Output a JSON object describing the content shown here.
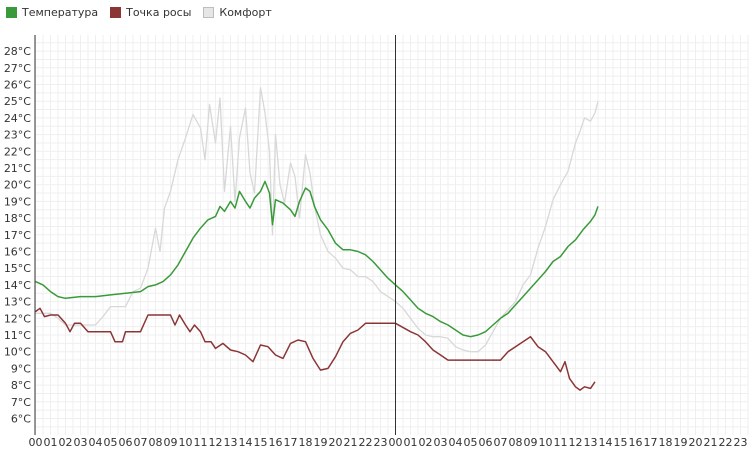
{
  "chart_data": {
    "type": "line",
    "title": "",
    "xlabel": "",
    "ylabel": "",
    "y_unit": "°C",
    "ylim": [
      5.5,
      29
    ],
    "y_ticks": [
      6,
      7,
      8,
      9,
      10,
      11,
      12,
      13,
      14,
      15,
      16,
      17,
      18,
      19,
      20,
      21,
      22,
      23,
      24,
      25,
      26,
      27,
      28
    ],
    "y_tick_labels": [
      "6°C",
      "7°C",
      "8°C",
      "9°C",
      "10°C",
      "11°C",
      "12°C",
      "13°C",
      "14°C",
      "15°C",
      "16°C",
      "17°C",
      "18°C",
      "19°C",
      "20°C",
      "21°C",
      "22°C",
      "23°C",
      "24°C",
      "25°C",
      "26°C",
      "27°C",
      "28°C"
    ],
    "x_unit": "hours",
    "xlim": [
      0,
      48
    ],
    "x_tick_labels": [
      "00",
      "01",
      "02",
      "03",
      "04",
      "05",
      "06",
      "07",
      "08",
      "09",
      "10",
      "11",
      "12",
      "13",
      "14",
      "15",
      "16",
      "17",
      "18",
      "19",
      "20",
      "21",
      "22",
      "23",
      "00",
      "01",
      "02",
      "03",
      "04",
      "05",
      "06",
      "07",
      "08",
      "09",
      "10",
      "11",
      "12",
      "13",
      "14",
      "15",
      "16",
      "17",
      "18",
      "19",
      "20",
      "21",
      "22",
      "23"
    ],
    "day_divider_x": 24,
    "grid": true,
    "legend_position": "top-left",
    "series": [
      {
        "name": "Температура",
        "color": "#3a9a3a",
        "points": [
          [
            0,
            14.2
          ],
          [
            0.5,
            14.0
          ],
          [
            1,
            13.6
          ],
          [
            1.5,
            13.3
          ],
          [
            2,
            13.2
          ],
          [
            3,
            13.3
          ],
          [
            4,
            13.3
          ],
          [
            5,
            13.4
          ],
          [
            6,
            13.5
          ],
          [
            7,
            13.6
          ],
          [
            7.5,
            13.9
          ],
          [
            8,
            14.0
          ],
          [
            8.5,
            14.2
          ],
          [
            9,
            14.6
          ],
          [
            9.5,
            15.2
          ],
          [
            10,
            16.0
          ],
          [
            10.5,
            16.8
          ],
          [
            11,
            17.4
          ],
          [
            11.5,
            17.9
          ],
          [
            12,
            18.1
          ],
          [
            12.3,
            18.7
          ],
          [
            12.6,
            18.4
          ],
          [
            13,
            19.0
          ],
          [
            13.3,
            18.6
          ],
          [
            13.6,
            19.6
          ],
          [
            14,
            19.0
          ],
          [
            14.3,
            18.6
          ],
          [
            14.6,
            19.2
          ],
          [
            15,
            19.6
          ],
          [
            15.3,
            20.2
          ],
          [
            15.6,
            19.5
          ],
          [
            15.8,
            17.6
          ],
          [
            16,
            19.1
          ],
          [
            16.5,
            18.9
          ],
          [
            17,
            18.5
          ],
          [
            17.3,
            18.1
          ],
          [
            17.6,
            19.0
          ],
          [
            18,
            19.8
          ],
          [
            18.3,
            19.6
          ],
          [
            18.6,
            18.7
          ],
          [
            19,
            17.9
          ],
          [
            19.5,
            17.3
          ],
          [
            20,
            16.5
          ],
          [
            20.5,
            16.1
          ],
          [
            21,
            16.1
          ],
          [
            21.5,
            16.0
          ],
          [
            22,
            15.8
          ],
          [
            22.5,
            15.4
          ],
          [
            23,
            14.9
          ],
          [
            23.5,
            14.4
          ],
          [
            24,
            14.0
          ],
          [
            24.5,
            13.6
          ],
          [
            25,
            13.1
          ],
          [
            25.5,
            12.6
          ],
          [
            26,
            12.3
          ],
          [
            26.5,
            12.1
          ],
          [
            27,
            11.8
          ],
          [
            27.5,
            11.6
          ],
          [
            28,
            11.3
          ],
          [
            28.5,
            11.0
          ],
          [
            29,
            10.9
          ],
          [
            29.5,
            11.0
          ],
          [
            30,
            11.2
          ],
          [
            30.5,
            11.6
          ],
          [
            31,
            12.0
          ],
          [
            31.5,
            12.3
          ],
          [
            32,
            12.8
          ],
          [
            32.5,
            13.3
          ],
          [
            33,
            13.8
          ],
          [
            33.5,
            14.3
          ],
          [
            34,
            14.8
          ],
          [
            34.5,
            15.4
          ],
          [
            35,
            15.7
          ],
          [
            35.5,
            16.3
          ],
          [
            36,
            16.7
          ],
          [
            36.5,
            17.3
          ],
          [
            37,
            17.8
          ],
          [
            37.3,
            18.2
          ],
          [
            37.5,
            18.7
          ]
        ]
      },
      {
        "name": "Точка росы",
        "color": "#8b3535",
        "points": [
          [
            0,
            12.4
          ],
          [
            0.3,
            12.6
          ],
          [
            0.6,
            12.1
          ],
          [
            1,
            12.2
          ],
          [
            1.5,
            12.2
          ],
          [
            2,
            11.7
          ],
          [
            2.3,
            11.2
          ],
          [
            2.6,
            11.7
          ],
          [
            3,
            11.7
          ],
          [
            3.5,
            11.2
          ],
          [
            4,
            11.2
          ],
          [
            5,
            11.2
          ],
          [
            5.3,
            10.6
          ],
          [
            5.8,
            10.6
          ],
          [
            6,
            11.2
          ],
          [
            6.5,
            11.2
          ],
          [
            7,
            11.2
          ],
          [
            7.5,
            12.2
          ],
          [
            8,
            12.2
          ],
          [
            9,
            12.2
          ],
          [
            9.3,
            11.6
          ],
          [
            9.6,
            12.2
          ],
          [
            10,
            11.6
          ],
          [
            10.3,
            11.2
          ],
          [
            10.6,
            11.6
          ],
          [
            11,
            11.2
          ],
          [
            11.3,
            10.6
          ],
          [
            11.7,
            10.6
          ],
          [
            12,
            10.2
          ],
          [
            12.5,
            10.5
          ],
          [
            13,
            10.1
          ],
          [
            13.5,
            10.0
          ],
          [
            14,
            9.8
          ],
          [
            14.5,
            9.4
          ],
          [
            15,
            10.4
          ],
          [
            15.5,
            10.3
          ],
          [
            16,
            9.8
          ],
          [
            16.5,
            9.6
          ],
          [
            17,
            10.5
          ],
          [
            17.5,
            10.7
          ],
          [
            18,
            10.6
          ],
          [
            18.5,
            9.6
          ],
          [
            19,
            8.9
          ],
          [
            19.5,
            9.0
          ],
          [
            20,
            9.7
          ],
          [
            20.5,
            10.6
          ],
          [
            21,
            11.1
          ],
          [
            21.5,
            11.3
          ],
          [
            22,
            11.7
          ],
          [
            23,
            11.7
          ],
          [
            24,
            11.7
          ],
          [
            25,
            11.2
          ],
          [
            25.5,
            11.0
          ],
          [
            26,
            10.6
          ],
          [
            26.5,
            10.1
          ],
          [
            27,
            9.8
          ],
          [
            27.5,
            9.5
          ],
          [
            29,
            9.5
          ],
          [
            31,
            9.5
          ],
          [
            31.5,
            10.0
          ],
          [
            32,
            10.3
          ],
          [
            32.5,
            10.6
          ],
          [
            33,
            10.9
          ],
          [
            33.5,
            10.3
          ],
          [
            34,
            10.0
          ],
          [
            34.5,
            9.4
          ],
          [
            35,
            8.8
          ],
          [
            35.3,
            9.4
          ],
          [
            35.6,
            8.4
          ],
          [
            36,
            7.9
          ],
          [
            36.3,
            7.7
          ],
          [
            36.6,
            7.9
          ],
          [
            37,
            7.8
          ],
          [
            37.3,
            8.2
          ]
        ]
      },
      {
        "name": "Комфорт",
        "color": "#d8d8d8",
        "points": [
          [
            0,
            12.3
          ],
          [
            1,
            12.3
          ],
          [
            1.5,
            12.0
          ],
          [
            2,
            11.6
          ],
          [
            3,
            11.6
          ],
          [
            4,
            11.6
          ],
          [
            4.5,
            12.1
          ],
          [
            5,
            12.7
          ],
          [
            6,
            12.7
          ],
          [
            6.5,
            13.6
          ],
          [
            7,
            13.8
          ],
          [
            7.5,
            15.0
          ],
          [
            8,
            17.4
          ],
          [
            8.3,
            16.0
          ],
          [
            8.6,
            18.6
          ],
          [
            9,
            19.6
          ],
          [
            9.5,
            21.5
          ],
          [
            10,
            22.8
          ],
          [
            10.5,
            24.2
          ],
          [
            11,
            23.4
          ],
          [
            11.3,
            21.5
          ],
          [
            11.6,
            24.8
          ],
          [
            12,
            22.5
          ],
          [
            12.3,
            25.2
          ],
          [
            12.6,
            19.6
          ],
          [
            13,
            23.5
          ],
          [
            13.3,
            19.0
          ],
          [
            13.6,
            22.8
          ],
          [
            14,
            24.6
          ],
          [
            14.3,
            20.7
          ],
          [
            14.6,
            19.5
          ],
          [
            15,
            25.8
          ],
          [
            15.3,
            24.3
          ],
          [
            15.6,
            22.0
          ],
          [
            15.8,
            17.0
          ],
          [
            16,
            23.0
          ],
          [
            16.3,
            20.0
          ],
          [
            16.6,
            18.9
          ],
          [
            17,
            21.3
          ],
          [
            17.3,
            20.5
          ],
          [
            17.6,
            18.0
          ],
          [
            18,
            21.8
          ],
          [
            18.3,
            20.7
          ],
          [
            18.6,
            18.7
          ],
          [
            19,
            17.0
          ],
          [
            19.5,
            16.0
          ],
          [
            20,
            15.6
          ],
          [
            20.5,
            15.0
          ],
          [
            21,
            14.9
          ],
          [
            21.5,
            14.5
          ],
          [
            22,
            14.5
          ],
          [
            22.5,
            14.2
          ],
          [
            23,
            13.6
          ],
          [
            23.5,
            13.3
          ],
          [
            24,
            13.0
          ],
          [
            24.5,
            12.6
          ],
          [
            25,
            12.0
          ],
          [
            25.5,
            11.4
          ],
          [
            26,
            11.0
          ],
          [
            26.5,
            10.9
          ],
          [
            27,
            10.9
          ],
          [
            27.5,
            10.8
          ],
          [
            28,
            10.3
          ],
          [
            28.5,
            10.1
          ],
          [
            29,
            10.0
          ],
          [
            29.5,
            10.0
          ],
          [
            30,
            10.4
          ],
          [
            30.5,
            11.2
          ],
          [
            31,
            12.0
          ],
          [
            31.5,
            12.5
          ],
          [
            32,
            13.0
          ],
          [
            32.5,
            14.0
          ],
          [
            33,
            14.6
          ],
          [
            33.5,
            16.2
          ],
          [
            34,
            17.5
          ],
          [
            34.5,
            19.1
          ],
          [
            35,
            20.0
          ],
          [
            35.5,
            20.8
          ],
          [
            36,
            22.5
          ],
          [
            36.3,
            23.2
          ],
          [
            36.6,
            24.0
          ],
          [
            37,
            23.8
          ],
          [
            37.3,
            24.3
          ],
          [
            37.5,
            25.0
          ]
        ]
      }
    ]
  }
}
